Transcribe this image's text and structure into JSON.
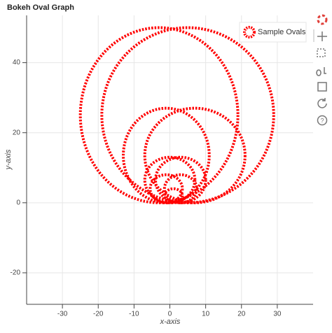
{
  "chart_data": {
    "type": "oval",
    "title": "Bokeh Oval Graph",
    "x_label": "x-axis",
    "y_label": "y-axis",
    "series": [
      {
        "name": "Sample Ovals",
        "color": "#ff0000",
        "x": [
          -3,
          5,
          -1,
          7,
          0,
          3,
          -1,
          3,
          1
        ],
        "y": [
          25,
          25,
          13.5,
          13.5,
          6.5,
          6.5,
          4,
          4,
          2
        ],
        "width": [
          44,
          48,
          24,
          28,
          14,
          14,
          9,
          9,
          5
        ],
        "height": [
          50,
          50,
          27,
          27,
          13,
          13,
          8,
          8,
          4
        ]
      }
    ],
    "xlim": [
      -40,
      40
    ],
    "ylim": [
      -29,
      53.5
    ],
    "xticks": [
      -30,
      -20,
      -10,
      0,
      10,
      20,
      30
    ],
    "yticks": [
      -20,
      0,
      20,
      40
    ],
    "grid": true,
    "legend": "top-right"
  }
}
